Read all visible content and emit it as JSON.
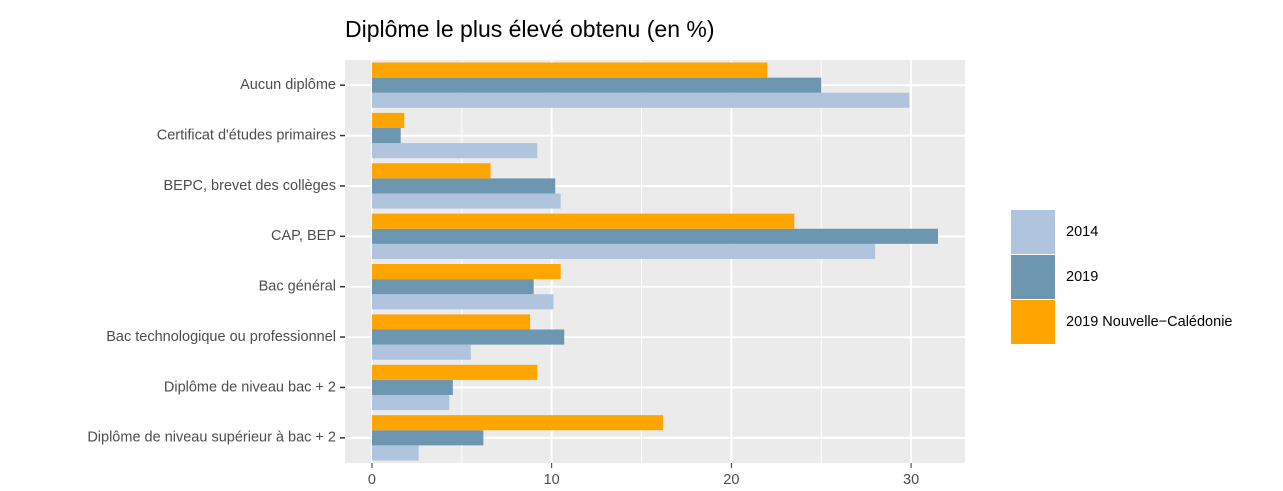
{
  "chart_data": {
    "type": "bar",
    "orientation": "horizontal",
    "title": "Diplôme le plus élevé obtenu (en %)",
    "categories": [
      "Aucun diplôme",
      "Certificat d'études primaires",
      "BEPC, brevet des collèges",
      "CAP, BEP",
      "Bac général",
      "Bac technologique ou professionnel",
      "Diplôme de niveau bac + 2",
      "Diplôme de niveau supérieur à bac + 2"
    ],
    "series": [
      {
        "name": "2014",
        "color": "#b0c4de",
        "values": [
          29.9,
          9.2,
          10.5,
          28.0,
          10.1,
          5.5,
          4.3,
          2.6
        ]
      },
      {
        "name": "2019",
        "color": "#6d97b0",
        "values": [
          25.0,
          1.6,
          10.2,
          31.5,
          9.0,
          10.7,
          4.5,
          6.2
        ]
      },
      {
        "name": "2019 Nouvelle−Calédonie",
        "color": "#ffa500",
        "values": [
          22.0,
          1.8,
          6.6,
          23.5,
          10.5,
          8.8,
          9.2,
          16.2
        ]
      }
    ],
    "xlim": [
      -1.5,
      33
    ],
    "xticks": [
      0,
      10,
      20,
      30
    ],
    "grid": true,
    "legend": "right"
  }
}
